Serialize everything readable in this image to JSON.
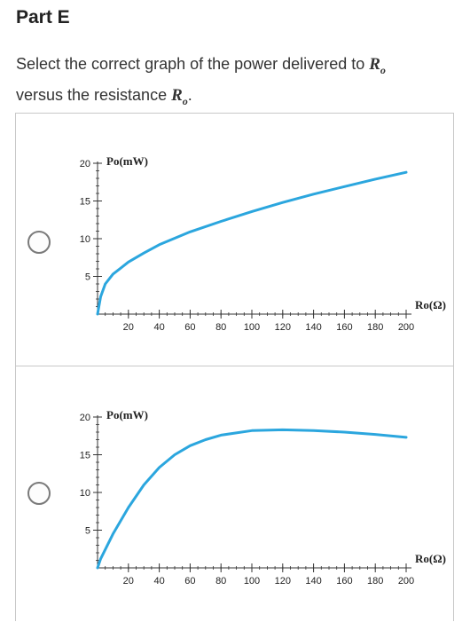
{
  "part": {
    "title": "Part E"
  },
  "question": {
    "text_before": "Select the correct graph of the power delivered to ",
    "var1": "Ro",
    "text_middle": "versus the resistance ",
    "var2": "Ro",
    "text_after": "."
  },
  "options": [
    {
      "radio_selected": false
    },
    {
      "radio_selected": false
    }
  ],
  "colors": {
    "curve": "#2ba6de",
    "axis": "#333333",
    "border": "#c8c8c8"
  },
  "chart_data": [
    {
      "type": "line",
      "ylabel": "Po(mW)",
      "xlabel": "Ro(Ω)",
      "xlim": [
        0,
        200
      ],
      "ylim": [
        0,
        20
      ],
      "xticks": [
        20,
        40,
        60,
        80,
        100,
        120,
        140,
        160,
        180,
        200
      ],
      "yticks": [
        5,
        10,
        15,
        20
      ],
      "series": [
        {
          "x": [
            0,
            2,
            5,
            10,
            15,
            20,
            30,
            40,
            60,
            80,
            100,
            120,
            140,
            160,
            180,
            200
          ],
          "y": [
            0,
            2.3,
            4.0,
            5.3,
            6.1,
            6.9,
            8.1,
            9.2,
            10.9,
            12.3,
            13.6,
            14.8,
            15.9,
            16.9,
            17.9,
            18.8
          ]
        }
      ],
      "grid": false
    },
    {
      "type": "line",
      "ylabel": "Po(mW)",
      "xlabel": "Ro(Ω)",
      "xlim": [
        0,
        200
      ],
      "ylim": [
        0,
        20
      ],
      "xticks": [
        20,
        40,
        60,
        80,
        100,
        120,
        140,
        160,
        180,
        200
      ],
      "yticks": [
        5,
        10,
        15,
        20
      ],
      "series": [
        {
          "x": [
            0,
            2,
            10,
            20,
            30,
            40,
            50,
            60,
            70,
            80,
            100,
            120,
            140,
            160,
            180,
            200
          ],
          "y": [
            0,
            1.2,
            4.5,
            8.0,
            11.0,
            13.3,
            15.0,
            16.2,
            17.0,
            17.6,
            18.2,
            18.3,
            18.2,
            18.0,
            17.7,
            17.3
          ]
        }
      ],
      "grid": false
    }
  ]
}
